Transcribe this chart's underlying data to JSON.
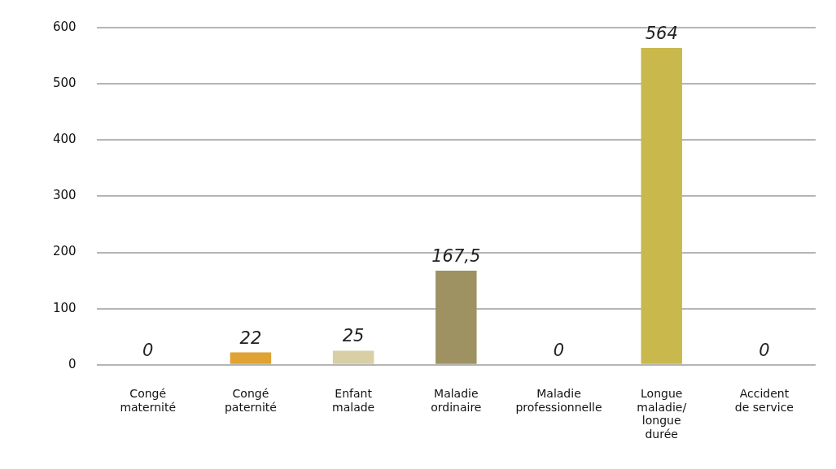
{
  "chart_data": {
    "type": "bar",
    "categories": [
      "Congé maternité",
      "Congé paternité",
      "Enfant malade",
      "Maladie ordinaire",
      "Maladie professionnelle",
      "Longue maladie/ longue durée",
      "Accident de service"
    ],
    "values": [
      0,
      22,
      25,
      167.5,
      0,
      564,
      0
    ],
    "value_labels": [
      "0",
      "22",
      "25",
      "167,5",
      "0",
      "564",
      "0"
    ],
    "colors": [
      "#c9c6bd",
      "#e0a232",
      "#d8cfa5",
      "#9f9262",
      "#c9c6bd",
      "#c9b84c",
      "#c9c6bd"
    ],
    "ylim": [
      0,
      600
    ],
    "yticks": [
      0,
      100,
      200,
      300,
      400,
      500,
      600
    ],
    "grid": "y",
    "legend": false
  }
}
